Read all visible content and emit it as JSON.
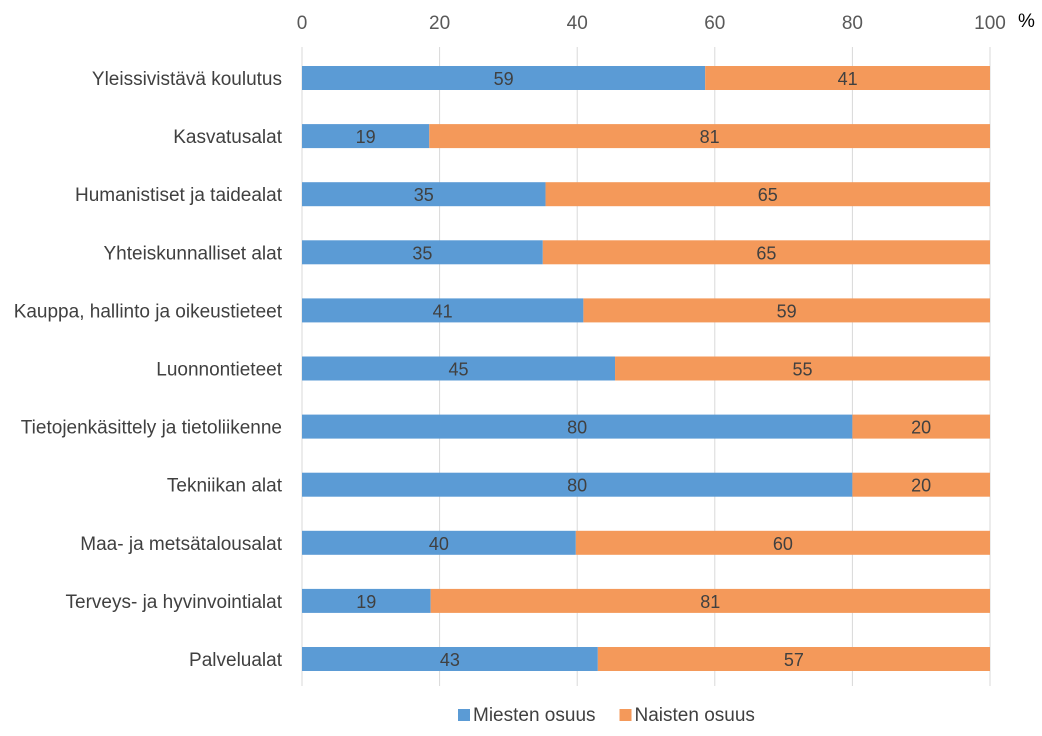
{
  "chart_data": {
    "type": "bar",
    "orientation": "horizontal",
    "stacked": true,
    "x_unit_label": "%",
    "xlim": [
      0,
      100
    ],
    "x_ticks": [
      "0",
      "20",
      "40",
      "60",
      "80",
      "100"
    ],
    "x_axis_position": "top",
    "grid": true,
    "legend_position": "bottom",
    "categories": [
      "Yleissivistävä koulutus",
      "Kasvatusalat",
      "Humanistiset ja taidealat",
      "Yhteiskunnalliset alat",
      "Kauppa, hallinto ja oikeustieteet",
      "Luonnontieteet",
      "Tietojenkäsittely ja tietoliikenne",
      "Tekniikan alat",
      "Maa- ja metsätalousalat",
      "Terveys- ja hyvinvointialat",
      "Palvelualat"
    ],
    "series": [
      {
        "name": "Miesten osuus",
        "color": "#5B9BD5",
        "values": [
          58.6,
          18.5,
          35.4,
          35.0,
          40.9,
          45.5,
          80.0,
          80.0,
          39.8,
          18.7,
          43.0
        ],
        "labels": [
          "59",
          "19",
          "35",
          "35",
          "41",
          "45",
          "80",
          "80",
          "40",
          "19",
          "43"
        ]
      },
      {
        "name": "Naisten osuus",
        "color": "#F4995A",
        "values": [
          41.4,
          81.5,
          64.6,
          65.0,
          59.1,
          54.5,
          20.0,
          20.0,
          60.2,
          81.3,
          57.0
        ],
        "labels": [
          "41",
          "81",
          "65",
          "65",
          "59",
          "55",
          "20",
          "20",
          "60",
          "81",
          "57"
        ]
      }
    ]
  }
}
